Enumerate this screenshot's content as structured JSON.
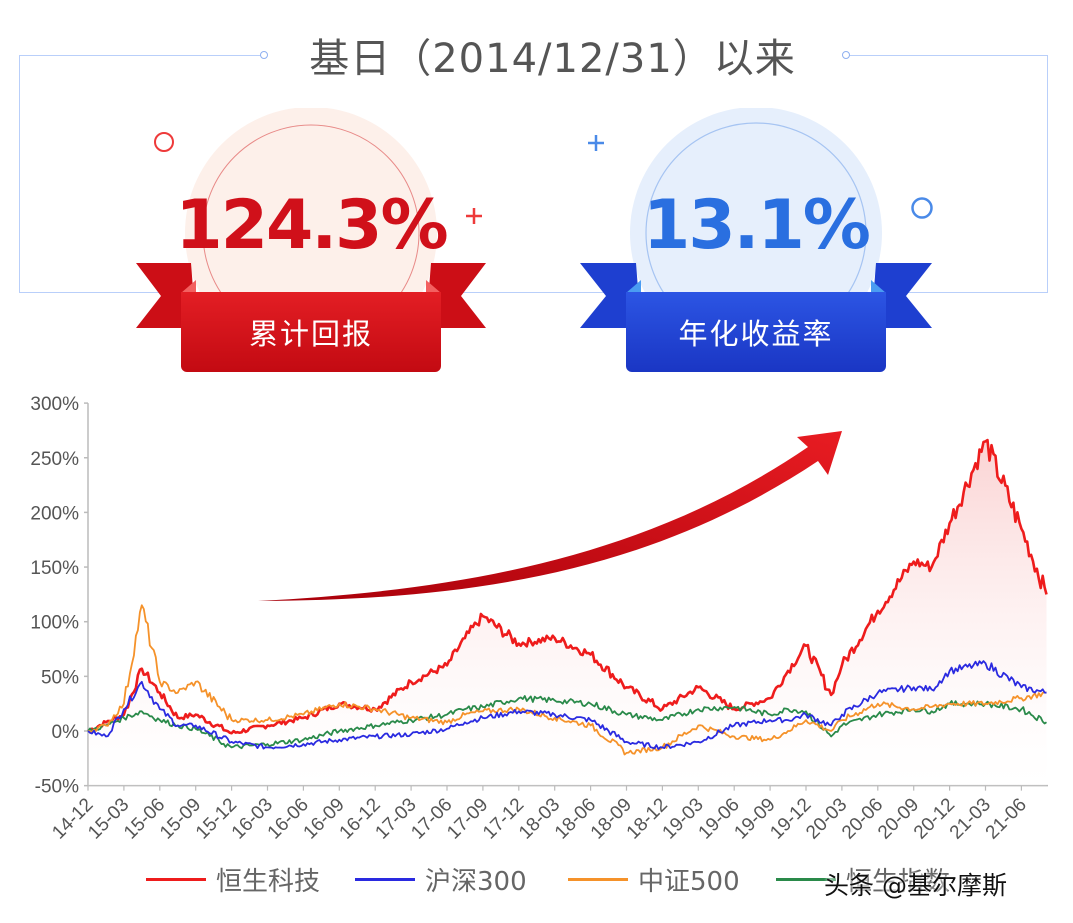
{
  "header": {
    "title": "基日（2014/12/31）以来"
  },
  "badges": [
    {
      "value": "124.3%",
      "label": "累计回报",
      "color": "#d0101a",
      "ribbon_color": "#d8121c",
      "circle_color": "#fdf0ea"
    },
    {
      "value": "13.1%",
      "label": "年化收益率",
      "color": "#2a6fe0",
      "ribbon_color": "#2448d8",
      "circle_color": "#e6effc"
    }
  ],
  "decorations": {
    "red_ring": "ring-icon",
    "red_plus": "plus-icon",
    "blue_plus": "plus-icon",
    "blue_ring": "ring-icon",
    "trend_arrow": "up-trend-arrow-icon"
  },
  "legend": [
    {
      "label": "恒生科技",
      "color": "#ee1c1c"
    },
    {
      "label": "沪深300",
      "color": "#2a2ae0"
    },
    {
      "label": "中证500",
      "color": "#f5922a"
    },
    {
      "label": "恒生指数",
      "color": "#2a8a4a"
    }
  ],
  "watermark": "头条 @基尔摩斯",
  "chart_data": {
    "type": "line",
    "title": "基日（2014/12/31）以来",
    "xlabel": "",
    "ylabel": "",
    "ylim": [
      -50,
      300
    ],
    "yticks": [
      "300%",
      "250%",
      "200%",
      "150%",
      "100%",
      "50%",
      "0%",
      "-50%"
    ],
    "ytick_values": [
      300,
      250,
      200,
      150,
      100,
      50,
      0,
      -50
    ],
    "categories": [
      "14-12",
      "15-03",
      "15-06",
      "15-09",
      "15-12",
      "16-03",
      "16-06",
      "16-09",
      "16-12",
      "17-03",
      "17-06",
      "17-09",
      "17-12",
      "18-03",
      "18-06",
      "18-09",
      "18-12",
      "19-03",
      "19-06",
      "19-09",
      "19-12",
      "20-03",
      "20-06",
      "20-09",
      "20-12",
      "21-03",
      "21-06"
    ],
    "x": [
      0,
      0.5,
      1,
      1.5,
      2,
      2.5,
      3,
      4,
      5,
      6,
      7,
      8,
      9,
      10,
      10.5,
      11,
      12,
      13,
      14,
      15,
      16,
      17,
      18,
      19,
      19.5,
      20,
      20.7,
      21,
      22,
      23,
      23.5,
      24,
      25,
      26,
      26.7
    ],
    "series": [
      {
        "name": "恒生科技",
        "color": "#ee1c1c",
        "fill": true,
        "values": [
          0,
          8,
          15,
          57,
          35,
          12,
          15,
          -2,
          5,
          12,
          25,
          20,
          45,
          60,
          85,
          105,
          80,
          85,
          70,
          40,
          20,
          40,
          20,
          30,
          55,
          78,
          33,
          60,
          110,
          155,
          150,
          190,
          265,
          185,
          125
        ]
      },
      {
        "name": "沪深300",
        "color": "#2a2ae0",
        "fill": false,
        "values": [
          0,
          -5,
          20,
          45,
          20,
          5,
          5,
          -10,
          -15,
          -12,
          -8,
          -5,
          -3,
          2,
          8,
          12,
          18,
          15,
          10,
          -10,
          -15,
          -10,
          5,
          10,
          10,
          15,
          5,
          15,
          35,
          40,
          38,
          55,
          62,
          40,
          35
        ]
      },
      {
        "name": "中证500",
        "color": "#f5922a",
        "fill": false,
        "values": [
          0,
          5,
          25,
          115,
          45,
          35,
          45,
          10,
          10,
          15,
          25,
          20,
          12,
          8,
          15,
          18,
          20,
          12,
          5,
          -20,
          -15,
          5,
          -5,
          -8,
          0,
          10,
          0,
          10,
          25,
          20,
          22,
          25,
          25,
          30,
          35
        ]
      },
      {
        "name": "恒生指数",
        "color": "#2a8a4a",
        "fill": false,
        "values": [
          0,
          5,
          12,
          18,
          10,
          5,
          2,
          -15,
          -12,
          -8,
          0,
          5,
          10,
          15,
          20,
          22,
          30,
          28,
          25,
          15,
          10,
          20,
          22,
          15,
          20,
          18,
          -5,
          5,
          15,
          20,
          18,
          25,
          25,
          20,
          8
        ]
      }
    ],
    "grid": false,
    "legend_position": "bottom",
    "annotation": "red upward trend arrow"
  }
}
